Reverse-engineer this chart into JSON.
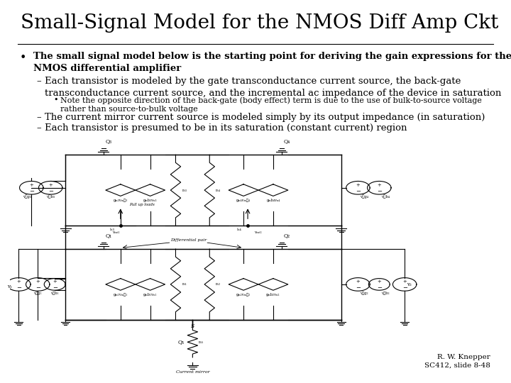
{
  "title": "Small-Signal Model for the NMOS Diff Amp Ckt",
  "bullet_main_l1": "The small signal model below is the starting point for deriving the gain expressions for the",
  "bullet_main_l2": "NMOS differential amplifier",
  "sub1_l1": "Each transistor is modeled by the gate transconductance current source, the back-gate",
  "sub1_l2": "transconductance current source, and the incremental ac impedance of the device in saturation",
  "note_l1": "Note the opposite direction of the back-gate (body effect) term is due to the use of bulk-to-source voltage",
  "note_l2": "rather than source-to-bulk voltage",
  "sub2": "The current mirror current source is modeled simply by its output impedance (in saturation)",
  "sub3": "Each transistor is presumed to be in its saturation (constant current) region",
  "attribution_l1": "R. W. Knepper",
  "attribution_l2": "SC412, slide 8-48",
  "bg_color": "#ffffff",
  "text_color": "#000000",
  "title_fontsize": 20,
  "body_fontsize": 9.5,
  "note_fontsize": 8,
  "attr_fontsize": 7.5
}
